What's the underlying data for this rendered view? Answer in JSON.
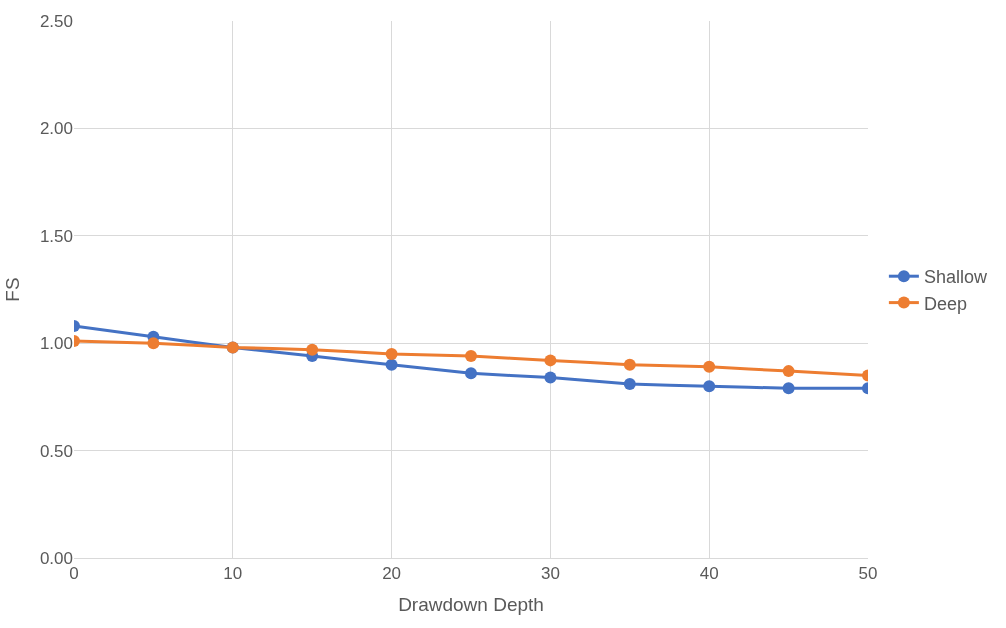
{
  "chart_data": {
    "type": "line",
    "xlabel": "Drawdown Depth",
    "ylabel": "FS",
    "x": [
      0,
      5,
      10,
      15,
      20,
      25,
      30,
      35,
      40,
      45,
      50
    ],
    "series": [
      {
        "name": "Shallow",
        "color": "#4472c4",
        "values": [
          1.08,
          1.03,
          0.98,
          0.94,
          0.9,
          0.86,
          0.84,
          0.81,
          0.8,
          0.79,
          0.79
        ]
      },
      {
        "name": "Deep",
        "color": "#ed7d31",
        "values": [
          1.01,
          1.0,
          0.98,
          0.97,
          0.95,
          0.94,
          0.92,
          0.9,
          0.89,
          0.87,
          0.85
        ]
      }
    ],
    "xlim": [
      0,
      50
    ],
    "xticks": [
      0,
      10,
      20,
      30,
      40,
      50
    ],
    "ylim": [
      0,
      2.5
    ],
    "yticks": [
      {
        "value": 0,
        "label": "0.00"
      },
      {
        "value": 0.5,
        "label": "0.50"
      },
      {
        "value": 1,
        "label": "1.00"
      },
      {
        "value": 1.5,
        "label": "1.50"
      },
      {
        "value": 2,
        "label": "2.00"
      },
      {
        "value": 2.5,
        "label": "2.50"
      }
    ],
    "grid": true,
    "legend": "right",
    "marker": "circle",
    "line_style": "solid"
  }
}
